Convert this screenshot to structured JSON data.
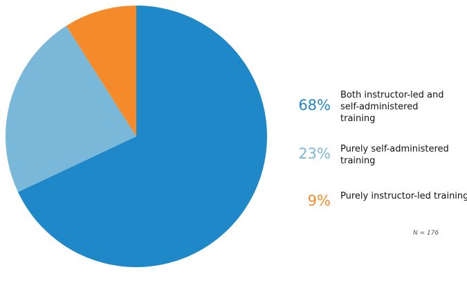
{
  "chart_data": {
    "type": "pie",
    "categories": [
      "Both instructor-led and self-administered training",
      "Purely self-administered training",
      "Purely instructor-led training"
    ],
    "values": [
      68,
      23,
      9
    ],
    "value_labels": [
      "68%",
      "23%",
      "9%"
    ],
    "colors": [
      "#1f88c8",
      "#7ab8d9",
      "#f58a2a"
    ],
    "note": "N = 176"
  }
}
